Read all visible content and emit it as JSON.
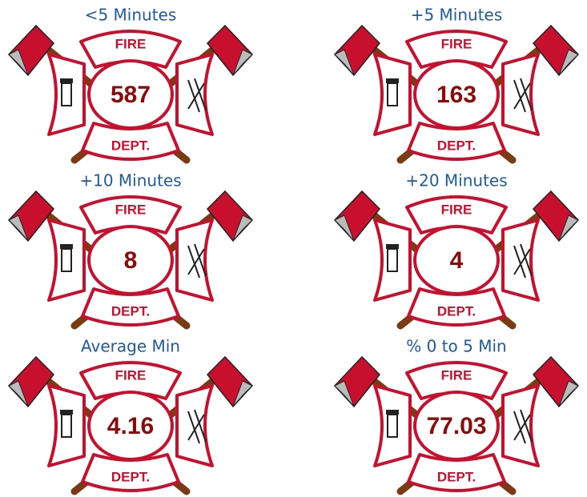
{
  "badge": {
    "top": "FIRE",
    "bottom": "DEPT."
  },
  "cards": [
    {
      "title": "<5 Minutes",
      "value": 587
    },
    {
      "title": "+5 Minutes",
      "value": 163
    },
    {
      "title": "+10 Minutes",
      "value": 8
    },
    {
      "title": "+20 Minutes",
      "value": 4
    },
    {
      "title": "Average Min",
      "value": 4.16
    },
    {
      "title": "% 0 to 5 Min",
      "value": 77.03
    }
  ]
}
